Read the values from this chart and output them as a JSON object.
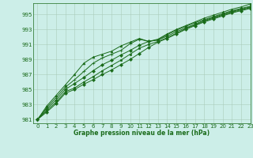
{
  "xlabel": "Graphe pression niveau de la mer (hPa)",
  "background_color": "#cceee8",
  "grid_color": "#aaccbb",
  "line_color": "#1a6b1a",
  "text_color": "#1a6b1a",
  "ylim": [
    980.5,
    996.5
  ],
  "xlim": [
    -0.5,
    23
  ],
  "yticks": [
    981,
    983,
    985,
    987,
    989,
    991,
    993,
    995
  ],
  "xticks": [
    0,
    1,
    2,
    3,
    4,
    5,
    6,
    7,
    8,
    9,
    10,
    11,
    12,
    13,
    14,
    15,
    16,
    17,
    18,
    19,
    20,
    21,
    22,
    23
  ],
  "series": [
    [
      981.0,
      982.0,
      983.1,
      984.5,
      985.0,
      985.7,
      986.3,
      987.0,
      987.6,
      988.3,
      989.0,
      989.8,
      990.6,
      991.3,
      991.8,
      992.4,
      993.0,
      993.5,
      994.0,
      994.4,
      994.8,
      995.2,
      995.5,
      995.8
    ],
    [
      981.0,
      982.2,
      983.3,
      984.7,
      985.2,
      986.0,
      986.7,
      987.5,
      988.2,
      988.9,
      989.7,
      990.5,
      991.0,
      991.4,
      991.9,
      992.5,
      993.1,
      993.6,
      994.1,
      994.5,
      994.9,
      995.3,
      995.6,
      995.9
    ],
    [
      981.0,
      982.4,
      983.6,
      985.0,
      985.8,
      986.6,
      987.5,
      988.3,
      988.9,
      989.6,
      990.2,
      990.9,
      991.4,
      991.6,
      992.1,
      992.7,
      993.2,
      993.7,
      994.2,
      994.6,
      995.0,
      995.4,
      995.7,
      996.0
    ],
    [
      981.0,
      982.6,
      983.9,
      985.3,
      986.3,
      987.4,
      988.5,
      989.2,
      989.7,
      990.2,
      991.1,
      991.7,
      991.4,
      991.6,
      992.3,
      992.9,
      993.4,
      993.9,
      994.3,
      994.7,
      995.1,
      995.5,
      995.8,
      996.1
    ],
    [
      981.0,
      982.8,
      984.2,
      985.6,
      987.0,
      988.5,
      989.3,
      989.7,
      990.1,
      990.8,
      991.3,
      991.8,
      991.4,
      991.7,
      992.4,
      993.0,
      993.5,
      994.0,
      994.5,
      994.9,
      995.3,
      995.7,
      996.0,
      996.4
    ]
  ],
  "markers": [
    "D",
    "s",
    "D",
    "+",
    "D"
  ]
}
